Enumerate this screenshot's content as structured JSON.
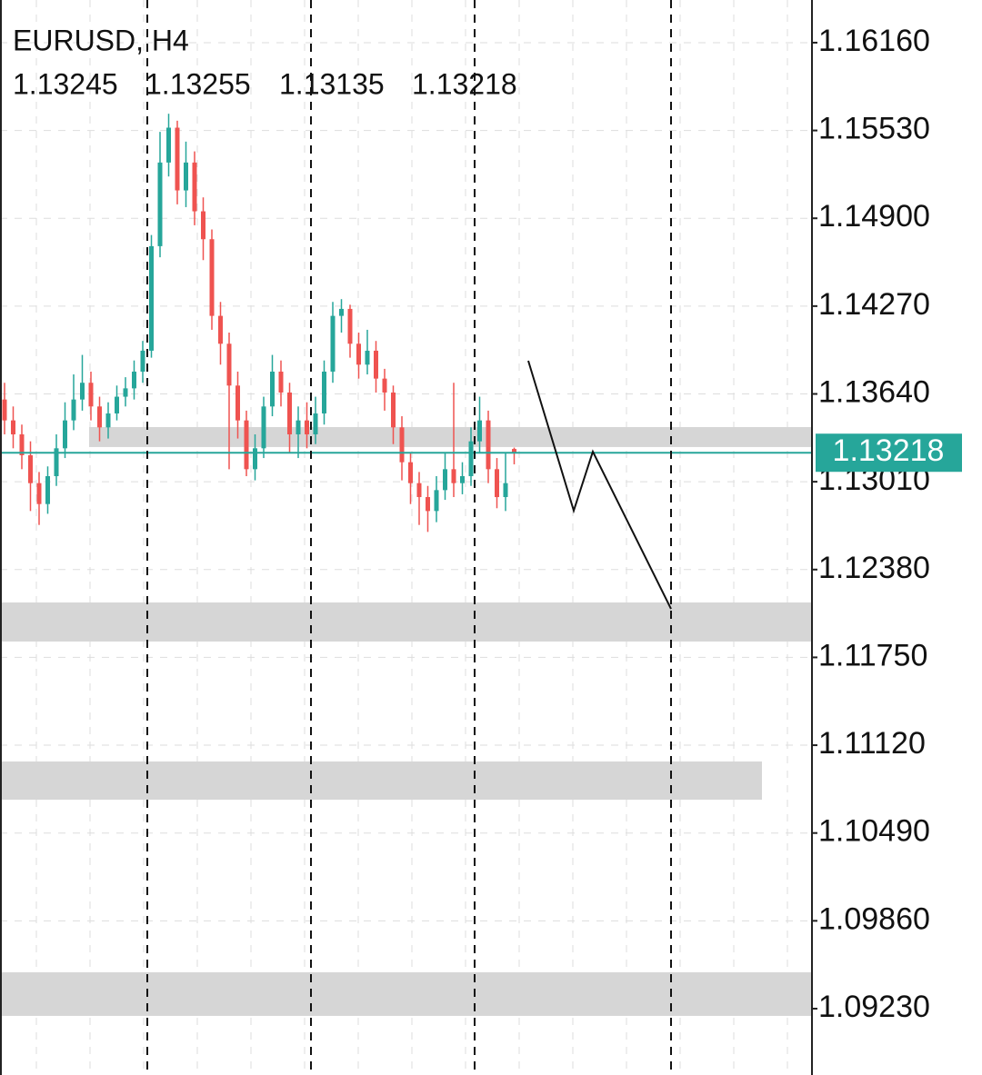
{
  "chart_data": {
    "type": "candlestick",
    "title": "EURUSD, H4",
    "ohlc_values": [
      1.13245,
      1.13255,
      1.13135,
      1.13218
    ],
    "last_price": 1.13218,
    "up_color": "#26a69a",
    "down_color": "#ef5350",
    "ylim": [
      1.08754,
      1.16466
    ],
    "yticks": [
      {
        "value": 1.1616,
        "label": "1.16160"
      },
      {
        "value": 1.1553,
        "label": "1.15530"
      },
      {
        "value": 1.149,
        "label": "1.14900"
      },
      {
        "value": 1.1427,
        "label": "1.14270"
      },
      {
        "value": 1.1364,
        "label": "1.13640"
      },
      {
        "value": 1.1301,
        "label": "1.13010"
      },
      {
        "value": 1.1238,
        "label": "1.12380"
      },
      {
        "value": 1.1175,
        "label": "1.11750"
      },
      {
        "value": 1.1112,
        "label": "1.11120"
      },
      {
        "value": 1.1049,
        "label": "1.10490"
      },
      {
        "value": 1.0986,
        "label": "1.09860"
      },
      {
        "value": 1.0923,
        "label": "1.09230"
      }
    ],
    "open": [
      1.136,
      1.1345,
      1.1335,
      1.132,
      1.13,
      1.1285,
      1.1305,
      1.1325,
      1.1345,
      1.136,
      1.1372,
      1.1355,
      1.134,
      1.135,
      1.1362,
      1.1368,
      1.138,
      1.1395,
      1.147,
      1.153,
      1.1555,
      1.151,
      1.153,
      1.1495,
      1.1475,
      1.142,
      1.14,
      1.137,
      1.1345,
      1.131,
      1.1325,
      1.1355,
      1.138,
      1.1365,
      1.1335,
      1.1345,
      1.1335,
      1.135,
      1.138,
      1.142,
      1.1425,
      1.14,
      1.1385,
      1.1395,
      1.1375,
      1.1365,
      1.134,
      1.1315,
      1.13,
      1.129,
      1.128,
      1.1295,
      1.131,
      1.13,
      1.1305,
      1.133,
      1.1345,
      1.131,
      1.129,
      1.13245
    ],
    "high": [
      1.1372,
      1.1355,
      1.1342,
      1.133,
      1.1308,
      1.1312,
      1.1335,
      1.1358,
      1.1378,
      1.1392,
      1.138,
      1.1362,
      1.1358,
      1.137,
      1.1376,
      1.1388,
      1.1402,
      1.1478,
      1.1552,
      1.1565,
      1.156,
      1.1545,
      1.1538,
      1.1505,
      1.1482,
      1.143,
      1.1408,
      1.138,
      1.1352,
      1.1335,
      1.1362,
      1.1392,
      1.1388,
      1.1372,
      1.1355,
      1.1358,
      1.1362,
      1.1388,
      1.143,
      1.1432,
      1.1428,
      1.1408,
      1.141,
      1.1402,
      1.1382,
      1.137,
      1.1348,
      1.1322,
      1.1308,
      1.1298,
      1.1305,
      1.1322,
      1.1372,
      1.1315,
      1.134,
      1.1362,
      1.1352,
      1.1318,
      1.1322,
      1.13255
    ],
    "low": [
      1.1335,
      1.1325,
      1.131,
      1.128,
      1.127,
      1.1278,
      1.1298,
      1.1318,
      1.1338,
      1.1352,
      1.1345,
      1.133,
      1.1332,
      1.1345,
      1.1355,
      1.136,
      1.1372,
      1.139,
      1.1462,
      1.152,
      1.15,
      1.1498,
      1.1485,
      1.146,
      1.141,
      1.1385,
      1.131,
      1.1332,
      1.1305,
      1.1302,
      1.1318,
      1.1348,
      1.1355,
      1.1322,
      1.1318,
      1.1325,
      1.1328,
      1.1342,
      1.1372,
      1.1408,
      1.139,
      1.1375,
      1.1378,
      1.1365,
      1.1352,
      1.1328,
      1.1302,
      1.1285,
      1.127,
      1.1265,
      1.1272,
      1.1288,
      1.129,
      1.1292,
      1.1298,
      1.1322,
      1.13,
      1.1282,
      1.128,
      1.13135
    ],
    "close": [
      1.1345,
      1.1335,
      1.132,
      1.13,
      1.1285,
      1.1305,
      1.1325,
      1.1345,
      1.136,
      1.1372,
      1.1355,
      1.134,
      1.135,
      1.1362,
      1.1368,
      1.138,
      1.1395,
      1.147,
      1.153,
      1.1555,
      1.151,
      1.153,
      1.1495,
      1.1475,
      1.142,
      1.14,
      1.137,
      1.1345,
      1.131,
      1.1325,
      1.1355,
      1.138,
      1.1365,
      1.1335,
      1.1345,
      1.1335,
      1.135,
      1.138,
      1.142,
      1.1425,
      1.14,
      1.1385,
      1.1395,
      1.1375,
      1.1365,
      1.134,
      1.1315,
      1.13,
      1.129,
      1.128,
      1.1295,
      1.131,
      1.13,
      1.1305,
      1.133,
      1.1345,
      1.131,
      1.129,
      1.13,
      1.13218
    ],
    "zones": [
      {
        "from": 1.13402,
        "to": 1.13259
      },
      {
        "from": 1.12144,
        "to": 1.11864
      },
      {
        "from": 1.11003,
        "to": 1.10729
      },
      {
        "from": 1.09491,
        "to": 1.09178
      }
    ],
    "projection": [
      1.13878,
      1.12803,
      1.13226,
      1.12098
    ]
  }
}
